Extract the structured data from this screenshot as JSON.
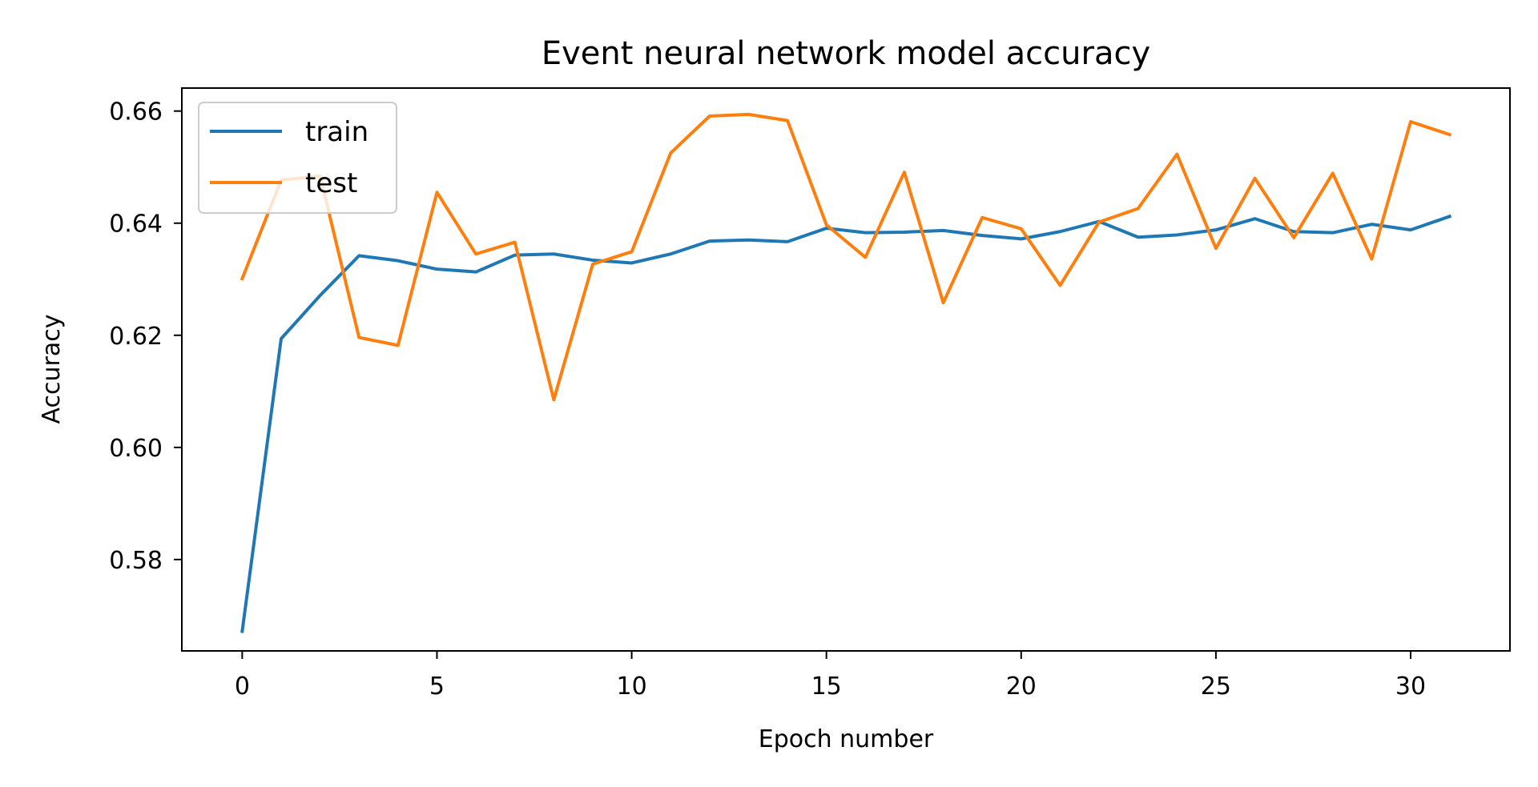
{
  "chart_data": {
    "type": "line",
    "title": "Event neural network model accuracy",
    "xlabel": "Epoch number",
    "ylabel": "Accuracy",
    "x": [
      0,
      1,
      2,
      3,
      4,
      5,
      6,
      7,
      8,
      9,
      10,
      11,
      12,
      13,
      14,
      15,
      16,
      17,
      18,
      19,
      20,
      21,
      22,
      23,
      24,
      25,
      26,
      27,
      28,
      29,
      30,
      31
    ],
    "xlim": [
      -1.55,
      32.55
    ],
    "ylim": [
      0.5637,
      0.6641
    ],
    "xticks": [
      0,
      5,
      10,
      15,
      20,
      25,
      30
    ],
    "xtick_labels": [
      "0",
      "5",
      "10",
      "15",
      "20",
      "25",
      "30"
    ],
    "yticks": [
      0.58,
      0.6,
      0.62,
      0.64,
      0.66
    ],
    "ytick_labels": [
      "0.58",
      "0.60",
      "0.62",
      "0.64",
      "0.66"
    ],
    "grid": false,
    "legend_position": "upper-left",
    "series": [
      {
        "name": "train",
        "color": "#1f77b4",
        "values": [
          0.5672,
          0.6194,
          0.6271,
          0.6342,
          0.6333,
          0.6318,
          0.6313,
          0.6343,
          0.6345,
          0.6334,
          0.6329,
          0.6345,
          0.6368,
          0.637,
          0.6367,
          0.6391,
          0.6383,
          0.6384,
          0.6387,
          0.6378,
          0.6372,
          0.6385,
          0.6403,
          0.6375,
          0.6379,
          0.6388,
          0.6408,
          0.6385,
          0.6383,
          0.6398,
          0.6388,
          0.6412
        ]
      },
      {
        "name": "test",
        "color": "#ff7f0e",
        "values": [
          0.6301,
          0.6477,
          0.6484,
          0.6196,
          0.6182,
          0.6455,
          0.6345,
          0.6366,
          0.6085,
          0.6327,
          0.6349,
          0.6525,
          0.6591,
          0.6594,
          0.6583,
          0.6397,
          0.6339,
          0.6491,
          0.6258,
          0.641,
          0.639,
          0.6289,
          0.6402,
          0.6426,
          0.6523,
          0.6355,
          0.648,
          0.6374,
          0.6489,
          0.6336,
          0.6581,
          0.6558
        ]
      }
    ]
  }
}
